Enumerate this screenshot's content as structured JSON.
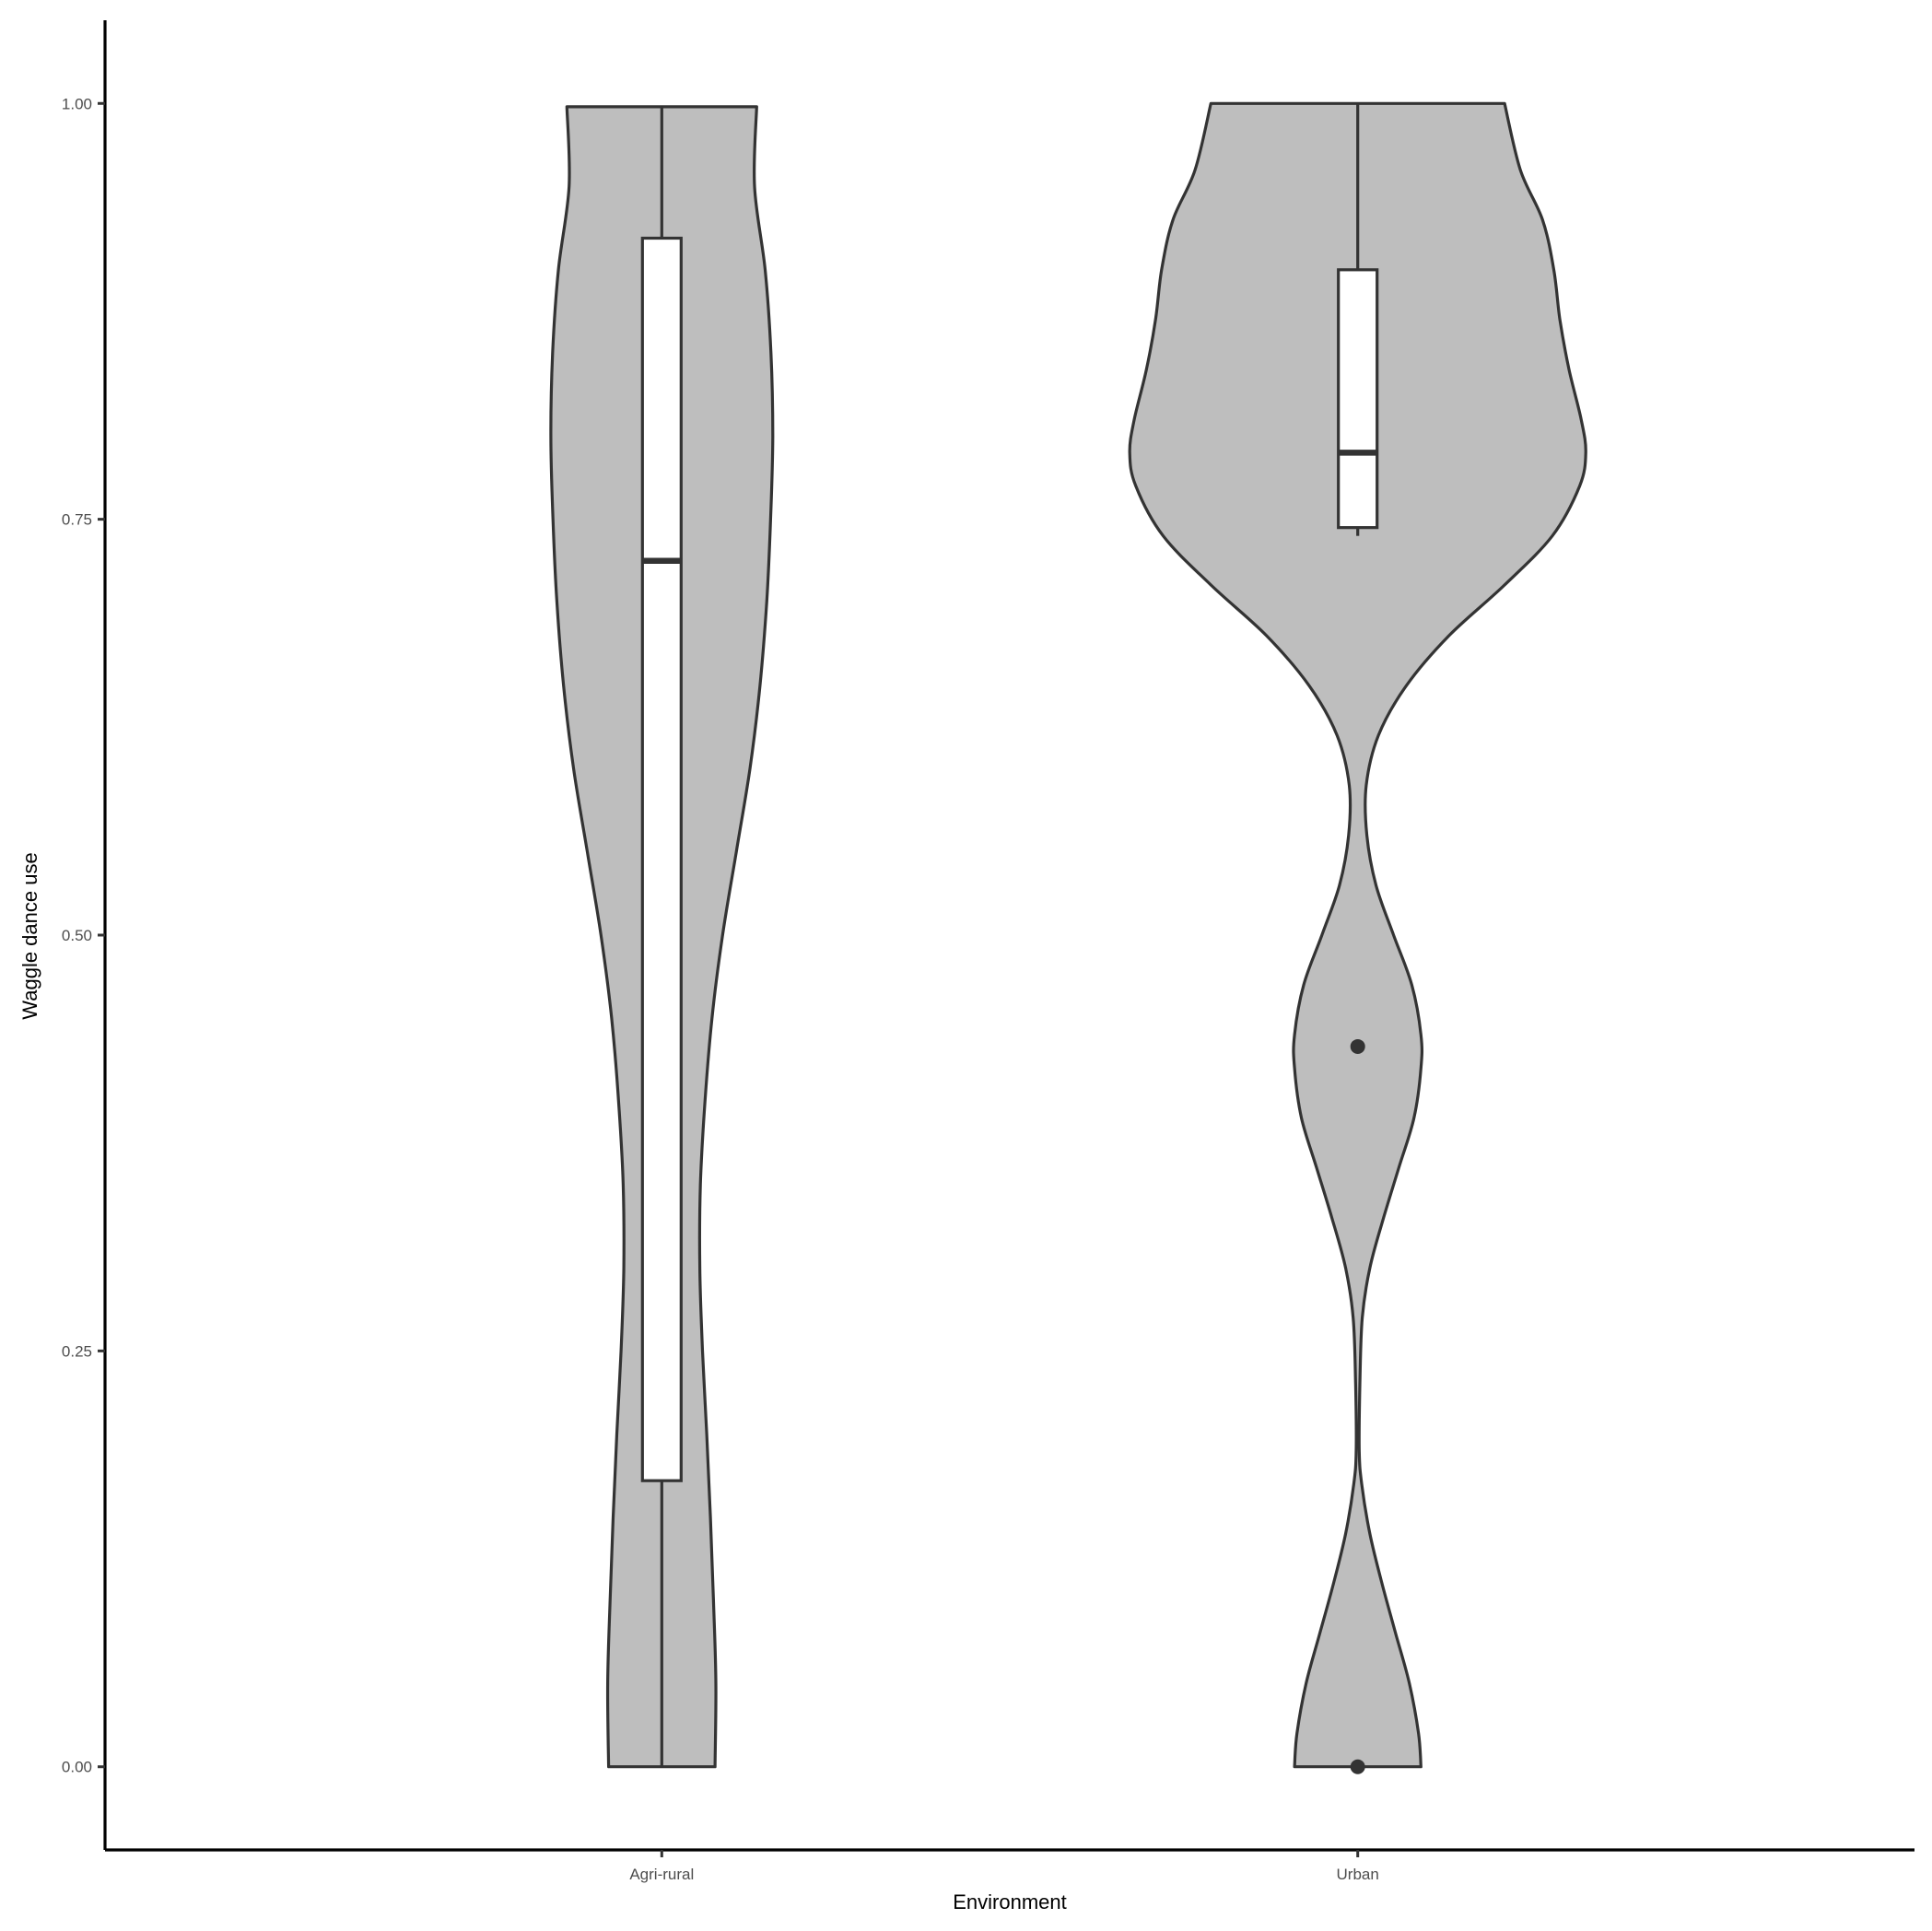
{
  "chart_data": {
    "type": "violin",
    "xlabel": "Environment",
    "ylabel": "Waggle dance use",
    "ylim": [
      -0.05,
      1.05
    ],
    "y_ticks": [
      0.0,
      0.25,
      0.5,
      0.75,
      1.0
    ],
    "y_tick_labels": [
      "0.00",
      "0.25",
      "0.50",
      "0.75",
      "1.00"
    ],
    "categories": [
      "Agri-rural",
      "Urban"
    ],
    "fill_color": "#bebebe",
    "outline_color": "#333333",
    "grid": false,
    "legend": "none",
    "groups": [
      {
        "name": "Agri-rural",
        "y_min": 0.0,
        "y_max": 0.998,
        "box": {
          "q1": 0.172,
          "median": 0.725,
          "q3": 0.919,
          "whisker_low": 0.0,
          "whisker_high": 0.998
        },
        "outliers": [],
        "density_profile": [
          [
            0.0,
            0.175
          ],
          [
            0.05,
            0.178
          ],
          [
            0.1,
            0.17
          ],
          [
            0.15,
            0.16
          ],
          [
            0.2,
            0.148
          ],
          [
            0.25,
            0.134
          ],
          [
            0.3,
            0.125
          ],
          [
            0.35,
            0.127
          ],
          [
            0.4,
            0.142
          ],
          [
            0.45,
            0.165
          ],
          [
            0.5,
            0.2
          ],
          [
            0.55,
            0.245
          ],
          [
            0.6,
            0.29
          ],
          [
            0.65,
            0.323
          ],
          [
            0.7,
            0.345
          ],
          [
            0.75,
            0.358
          ],
          [
            0.8,
            0.365
          ],
          [
            0.85,
            0.359
          ],
          [
            0.9,
            0.34
          ],
          [
            0.95,
            0.305
          ],
          [
            0.998,
            0.312
          ]
        ]
      },
      {
        "name": "Urban",
        "y_min": 0.0,
        "y_max": 1.0,
        "box": {
          "q1": 0.745,
          "median": 0.79,
          "q3": 0.9,
          "whisker_low": 0.74,
          "whisker_high": 1.0
        },
        "outliers": [
          0.433,
          0.0
        ],
        "density_profile": [
          [
            0.0,
            0.208
          ],
          [
            0.02,
            0.2
          ],
          [
            0.05,
            0.17
          ],
          [
            0.08,
            0.125
          ],
          [
            0.11,
            0.08
          ],
          [
            0.14,
            0.04
          ],
          [
            0.17,
            0.013
          ],
          [
            0.19,
            0.005
          ],
          [
            0.23,
            0.007
          ],
          [
            0.27,
            0.015
          ],
          [
            0.3,
            0.04
          ],
          [
            0.33,
            0.085
          ],
          [
            0.36,
            0.135
          ],
          [
            0.39,
            0.185
          ],
          [
            0.42,
            0.208
          ],
          [
            0.44,
            0.208
          ],
          [
            0.47,
            0.178
          ],
          [
            0.5,
            0.118
          ],
          [
            0.53,
            0.06
          ],
          [
            0.56,
            0.03
          ],
          [
            0.59,
            0.028
          ],
          [
            0.62,
            0.068
          ],
          [
            0.65,
            0.16
          ],
          [
            0.68,
            0.3
          ],
          [
            0.71,
            0.48
          ],
          [
            0.74,
            0.64
          ],
          [
            0.77,
            0.73
          ],
          [
            0.79,
            0.75
          ],
          [
            0.81,
            0.735
          ],
          [
            0.84,
            0.695
          ],
          [
            0.87,
            0.665
          ],
          [
            0.9,
            0.645
          ],
          [
            0.93,
            0.608
          ],
          [
            0.96,
            0.535
          ],
          [
            1.0,
            0.483
          ]
        ]
      }
    ]
  }
}
